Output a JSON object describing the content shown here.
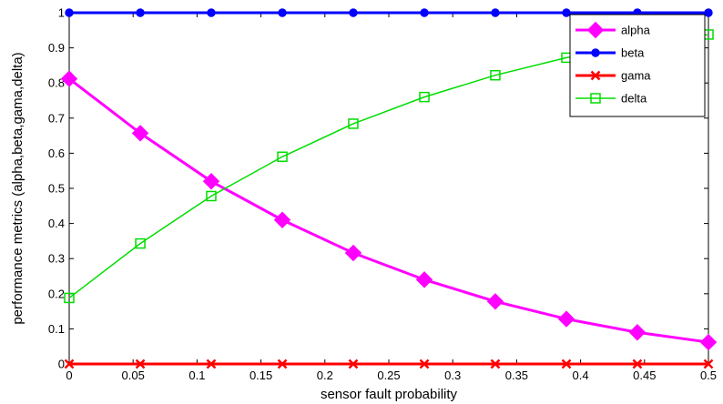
{
  "chart_data": {
    "type": "line",
    "title": "",
    "xlabel": "sensor fault probability",
    "ylabel": "performance metrics (alpha,beta,gama,delta)",
    "xlim": [
      0,
      0.5
    ],
    "ylim": [
      0,
      1
    ],
    "grid": false,
    "legend_position": "top-right",
    "x_ticks": [
      0,
      0.05,
      0.1,
      0.15,
      0.2,
      0.25,
      0.3,
      0.35,
      0.4,
      0.45,
      0.5
    ],
    "x_tick_labels": [
      "0",
      "0.05",
      "0.1",
      "0.15",
      "0.2",
      "0.25",
      "0.3",
      "0.35",
      "0.4",
      "0.45",
      "0.5"
    ],
    "y_ticks": [
      0,
      0.1,
      0.2,
      0.3,
      0.4,
      0.5,
      0.6,
      0.7,
      0.8,
      0.9,
      1
    ],
    "y_tick_labels": [
      "0",
      "0.1",
      "0.2",
      "0.3",
      "0.4",
      "0.5",
      "0.6",
      "0.7",
      "0.8",
      "0.9",
      "1"
    ],
    "x": [
      0,
      0.0556,
      0.1111,
      0.1667,
      0.2222,
      0.2778,
      0.3333,
      0.3889,
      0.4444,
      0.5
    ],
    "series": [
      {
        "name": "alpha",
        "color": "#ff00ff",
        "marker": "diamond",
        "values": [
          0.812,
          0.657,
          0.52,
          0.41,
          0.316,
          0.24,
          0.178,
          0.128,
          0.09,
          0.062
        ]
      },
      {
        "name": "beta",
        "color": "#0000ff",
        "marker": "filled-circle",
        "values": [
          1,
          1,
          1,
          1,
          1,
          1,
          1,
          1,
          1,
          1
        ]
      },
      {
        "name": "gama",
        "color": "#ff0000",
        "marker": "x",
        "values": [
          0,
          0,
          0,
          0,
          0,
          0,
          0,
          0,
          0,
          0
        ]
      },
      {
        "name": "delta",
        "color": "#00dd00",
        "marker": "square",
        "values": [
          0.188,
          0.343,
          0.478,
          0.59,
          0.684,
          0.76,
          0.822,
          0.872,
          0.91,
          0.938
        ]
      }
    ]
  }
}
